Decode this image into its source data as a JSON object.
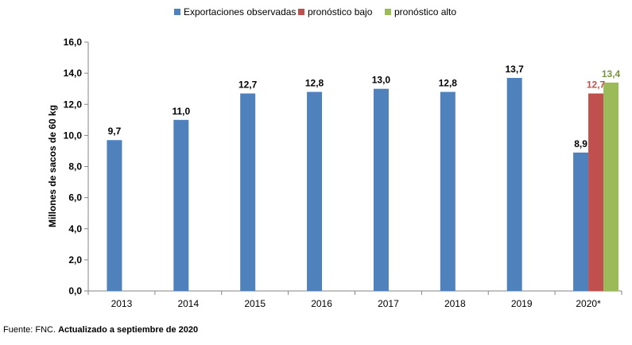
{
  "chart_data": {
    "type": "bar",
    "categories": [
      "2013",
      "2014",
      "2015",
      "2016",
      "2017",
      "2018",
      "2019",
      "2020*"
    ],
    "series": [
      {
        "name": "Exportaciones observadas",
        "color": "#4F81BD",
        "values": [
          9.7,
          11.0,
          12.7,
          12.8,
          13.0,
          12.8,
          13.7,
          8.9
        ],
        "labels": [
          "9,7",
          "11,0",
          "12,7",
          "12,8",
          "13,0",
          "12,8",
          "13,7",
          "8,9"
        ],
        "label_color": "#000000"
      },
      {
        "name": "pronóstico bajo",
        "color": "#C0504D",
        "values": [
          null,
          null,
          null,
          null,
          null,
          null,
          null,
          12.7
        ],
        "labels": [
          "",
          "",
          "",
          "",
          "",
          "",
          "",
          "12,7"
        ],
        "label_color": "#C0504D"
      },
      {
        "name": "pronóstico alto",
        "color": "#9BBB59",
        "values": [
          null,
          null,
          null,
          null,
          null,
          null,
          null,
          13.4
        ],
        "labels": [
          "",
          "",
          "",
          "",
          "",
          "",
          "",
          "13,4"
        ],
        "label_color": "#77933C"
      }
    ],
    "ylabel": "Millones de sacos de 60 kg",
    "ylim": [
      0,
      16
    ],
    "yticks": [
      0,
      2,
      4,
      6,
      8,
      10,
      12,
      14,
      16
    ],
    "ytick_labels": [
      "0,0",
      "2,0",
      "4,0",
      "6,0",
      "8,0",
      "10,0",
      "12,0",
      "14,0",
      "16,0"
    ],
    "grid": false,
    "legend_position": "top"
  },
  "source": {
    "prefix": "Fuente: FNC. ",
    "bold": "Actualizado a septiembre de 2020"
  }
}
